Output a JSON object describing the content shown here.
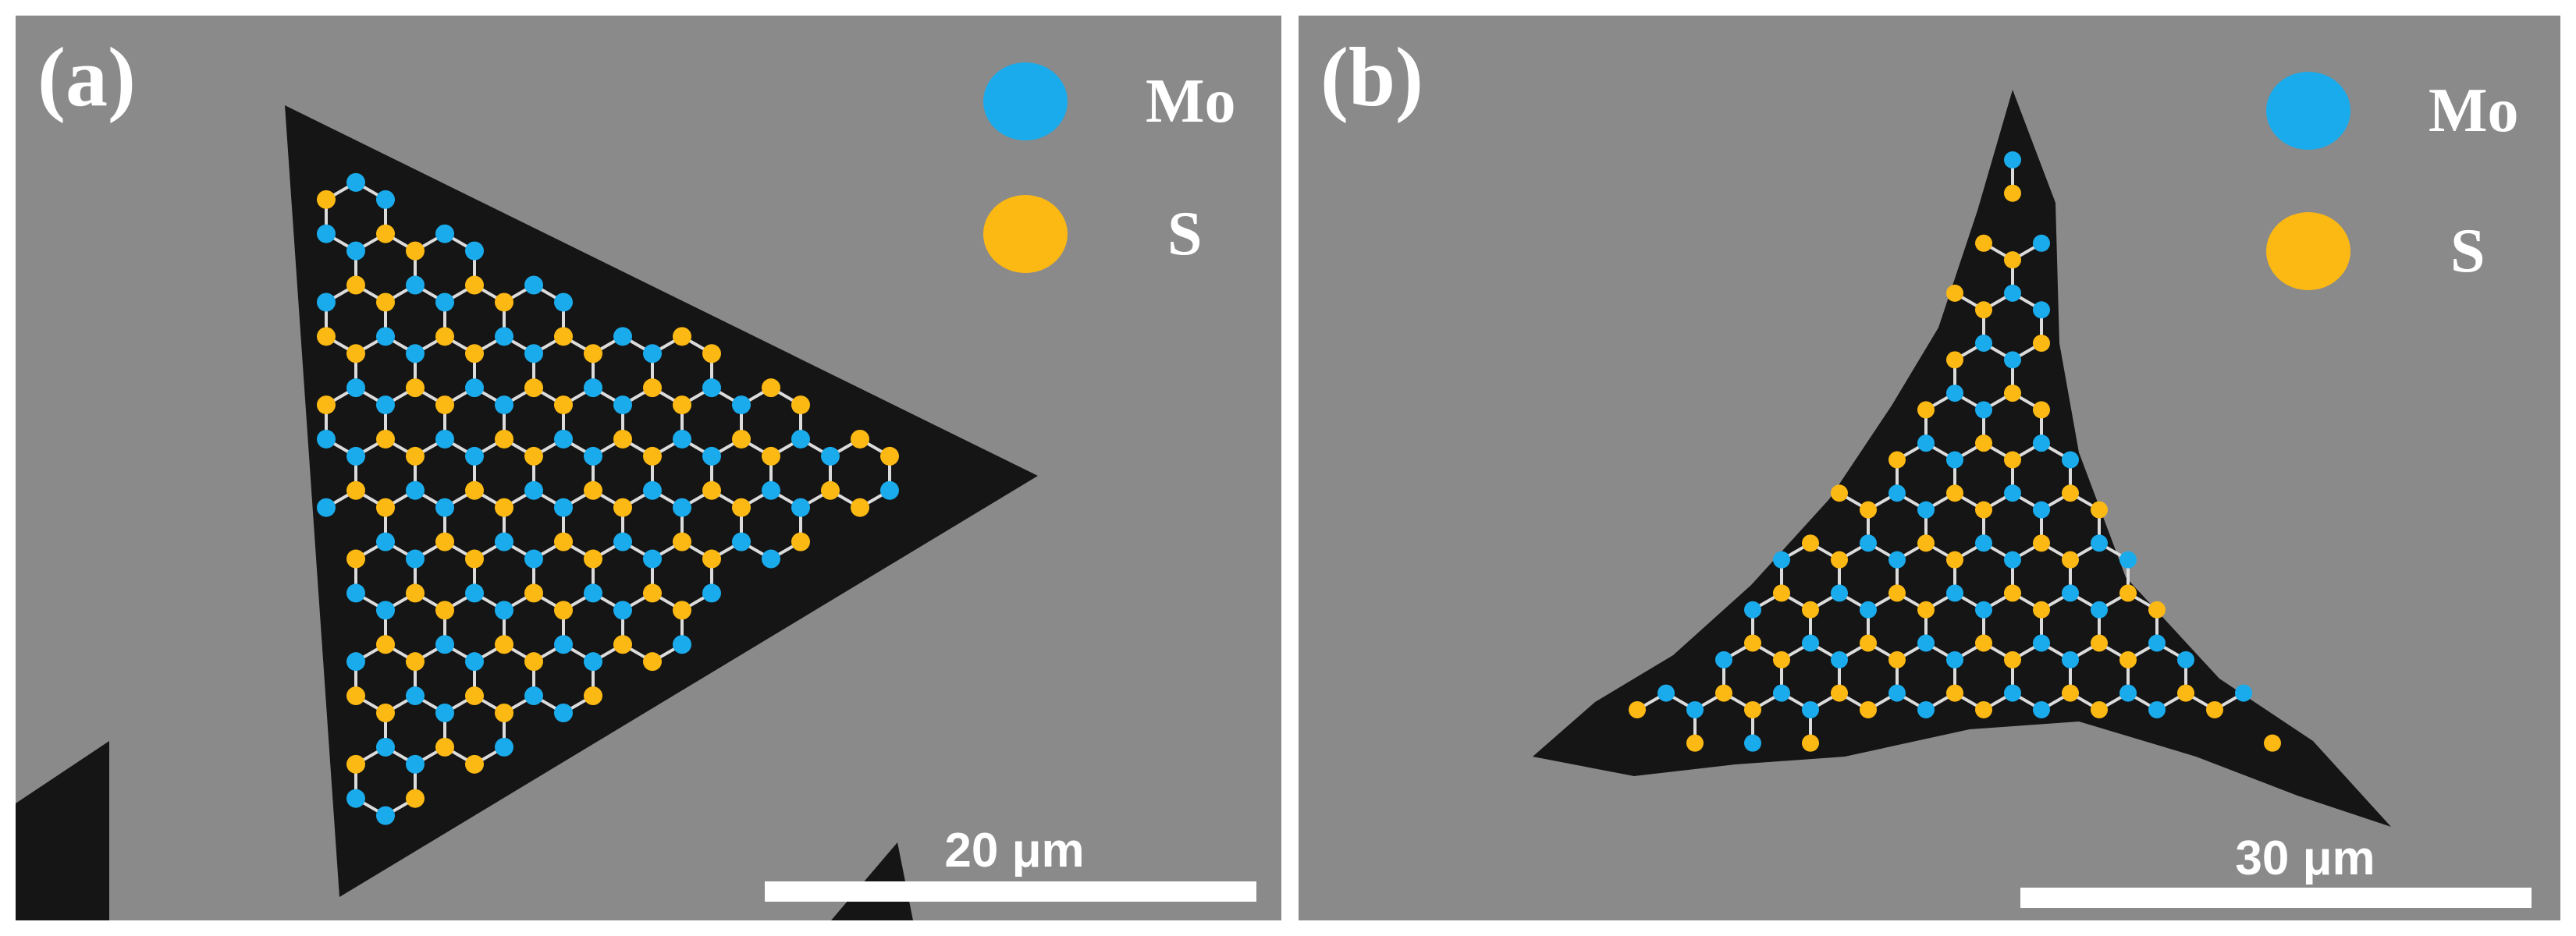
{
  "panels": [
    {
      "label": "(a)",
      "legend": [
        {
          "element": "Mo",
          "color": "#1aabec"
        },
        {
          "element": "S",
          "color": "#fdb913"
        }
      ],
      "scale_bar": "20 μm"
    },
    {
      "label": "(b)",
      "legend": [
        {
          "element": "Mo",
          "color": "#1aabec"
        },
        {
          "element": "S",
          "color": "#fdb913"
        }
      ],
      "scale_bar": "30 μm"
    }
  ],
  "colors": {
    "substrate": "#8a8a8a",
    "flake": "#151515",
    "bond": "#dcdcdc",
    "mo": "#1aabec",
    "s": "#fdb913"
  }
}
